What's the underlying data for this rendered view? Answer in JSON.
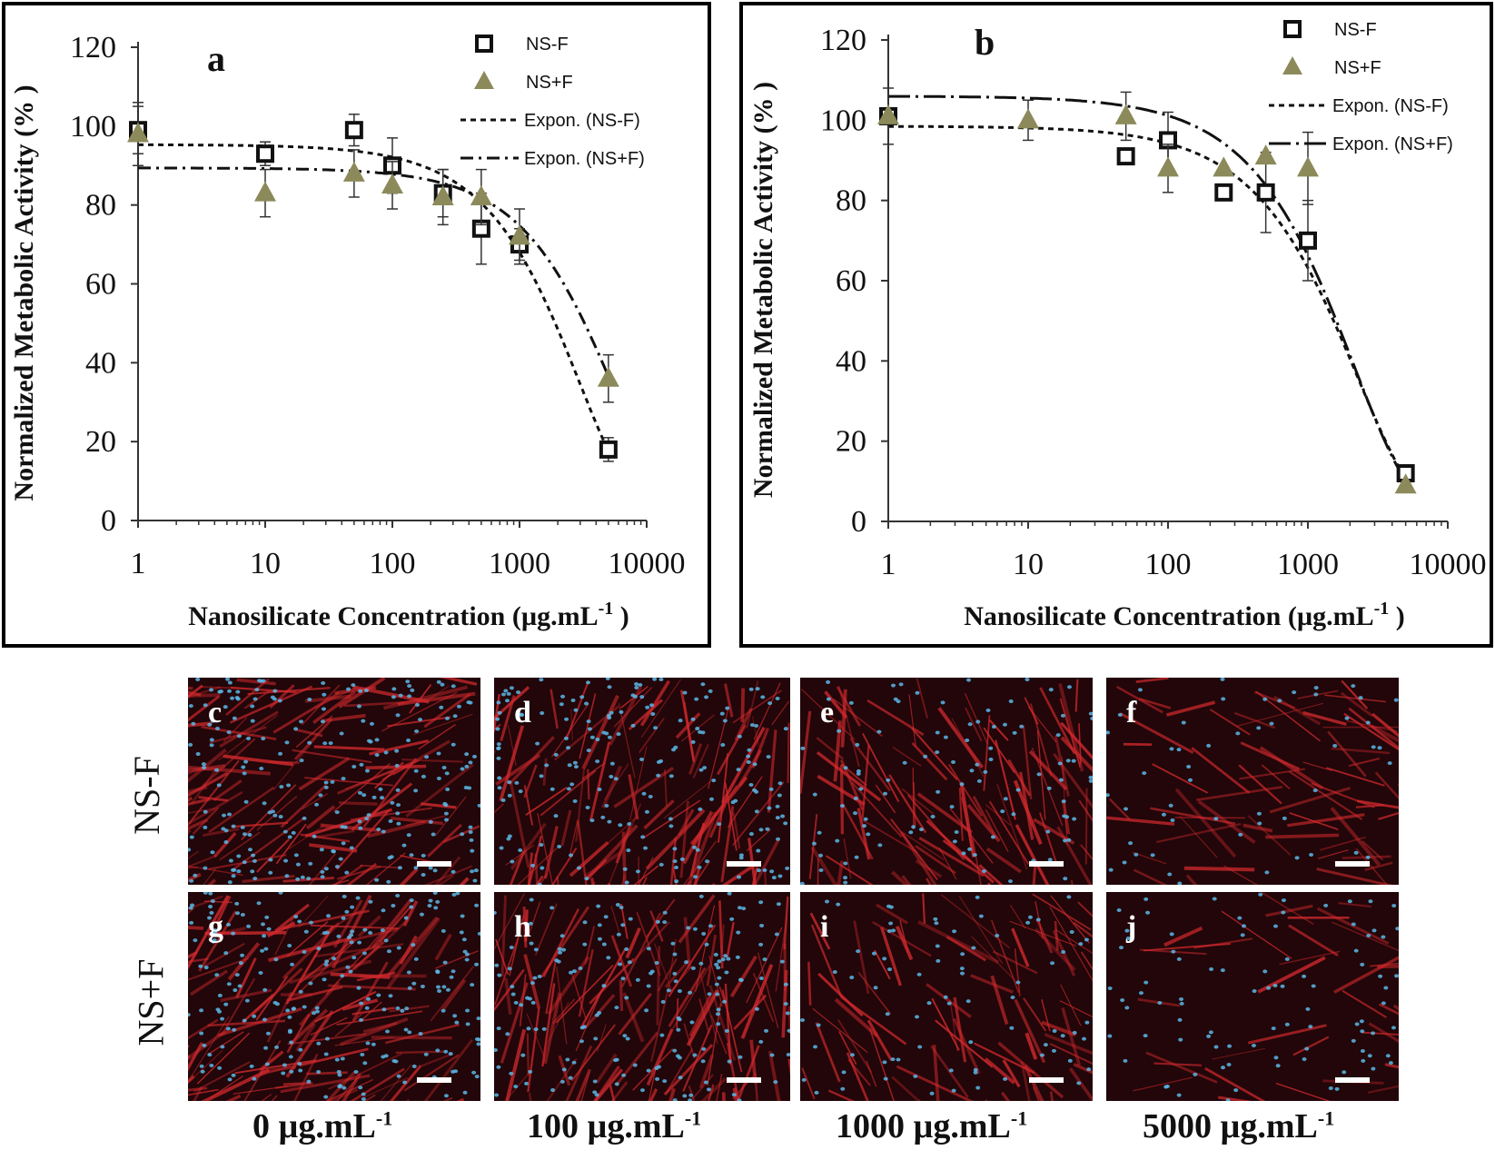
{
  "chart_data": [
    {
      "panel": "a",
      "type": "scatter",
      "xscale": "log",
      "xlim": [
        1,
        10000
      ],
      "ylim": [
        0,
        120
      ],
      "xticks": [
        "1",
        "10",
        "100",
        "1000",
        "10000"
      ],
      "yticks": [
        "0",
        "20",
        "40",
        "60",
        "80",
        "100",
        "120"
      ],
      "xlabel": "Nanosilicate Concentration (µg.mL",
      "xlabel_sup": "-1",
      "xlabel_end": " )",
      "ylabel": "Normalized Metabolic Activity (% )",
      "legend_position": "top-right",
      "series": [
        {
          "name": "NS-F",
          "marker": "square",
          "color": "#111111",
          "x": [
            1,
            10,
            50,
            100,
            250,
            500,
            1000,
            5000
          ],
          "y": [
            99,
            93,
            99,
            90,
            83,
            74,
            70,
            18
          ],
          "err": [
            6,
            3,
            4,
            7,
            6,
            9,
            4,
            3
          ]
        },
        {
          "name": "NS+F",
          "marker": "triangle",
          "color": "#8c8a5a",
          "x": [
            1,
            10,
            50,
            100,
            250,
            500,
            1000,
            5000
          ],
          "y": [
            98,
            83,
            88,
            85,
            82,
            82,
            72,
            36
          ],
          "err": [
            8,
            6,
            6,
            6,
            7,
            7,
            7,
            6
          ]
        },
        {
          "name": "Expon. (NS-F)",
          "type": "trendline",
          "dash": "6,5",
          "a": 95.3,
          "b": -0.000338
        },
        {
          "name": "Expon. (NS+F)",
          "type": "trendline",
          "dash": "14,6,3,6",
          "a": 89.4,
          "b": -0.000179
        }
      ]
    },
    {
      "panel": "b",
      "type": "scatter",
      "xscale": "log",
      "xlim": [
        1,
        10000
      ],
      "ylim": [
        0,
        120
      ],
      "xticks": [
        "1",
        "10",
        "100",
        "1000",
        "10000"
      ],
      "yticks": [
        "0",
        "20",
        "40",
        "60",
        "80",
        "100",
        "120"
      ],
      "xlabel": "Nanosilicate Concentration (µg.mL",
      "xlabel_sup": "-1",
      "xlabel_end": " )",
      "ylabel": "Normalized Metabolic Activity (% )",
      "legend_position": "top-right",
      "series": [
        {
          "name": "NS-F",
          "marker": "square",
          "color": "#111111",
          "x": [
            1,
            50,
            100,
            250,
            500,
            1000,
            5000
          ],
          "y": [
            101,
            91,
            95,
            82,
            82,
            70,
            12
          ],
          "err": [
            7,
            0,
            7,
            0,
            10,
            10,
            0
          ]
        },
        {
          "name": "NS+F",
          "marker": "triangle",
          "color": "#8c8a5a",
          "x": [
            1,
            10,
            50,
            100,
            250,
            500,
            1000,
            5000
          ],
          "y": [
            101,
            100,
            101,
            88,
            88,
            91,
            88,
            9
          ],
          "err": [
            0,
            5,
            6,
            6,
            0,
            0,
            9,
            0
          ]
        },
        {
          "name": "Expon. (NS-F)",
          "type": "trendline",
          "dash": "6,5",
          "a": 98.5,
          "b": -0.000444
        },
        {
          "name": "Expon. (NS+F)",
          "type": "trendline",
          "dash": "24,6,3,6",
          "a": 106,
          "b": -0.00047
        }
      ]
    }
  ],
  "micrographs": {
    "row_labels": [
      "NS-F",
      "NS+F"
    ],
    "concentration_labels": [
      {
        "value": "0",
        "unit": "µg.mL",
        "sup": "-1"
      },
      {
        "value": "100",
        "unit": "µg.mL",
        "sup": "-1"
      },
      {
        "value": "1000",
        "unit": "µg.mL",
        "sup": "-1"
      },
      {
        "value": "5000",
        "unit": "µg.mL",
        "sup": "-1"
      }
    ],
    "panels": [
      {
        "letter": "c",
        "red_density": 0.95,
        "nuclei_density": 0.9
      },
      {
        "letter": "d",
        "red_density": 0.9,
        "nuclei_density": 0.75
      },
      {
        "letter": "e",
        "red_density": 0.75,
        "nuclei_density": 0.4
      },
      {
        "letter": "f",
        "red_density": 0.5,
        "nuclei_density": 0.2
      },
      {
        "letter": "g",
        "red_density": 0.95,
        "nuclei_density": 0.9
      },
      {
        "letter": "h",
        "red_density": 0.9,
        "nuclei_density": 0.7
      },
      {
        "letter": "i",
        "red_density": 0.6,
        "nuclei_density": 0.3
      },
      {
        "letter": "j",
        "red_density": 0.25,
        "nuclei_density": 0.35
      }
    ],
    "colors": {
      "actin": "#d42a2e",
      "nuclei": "#5bb7e6",
      "background": "#220609"
    }
  }
}
